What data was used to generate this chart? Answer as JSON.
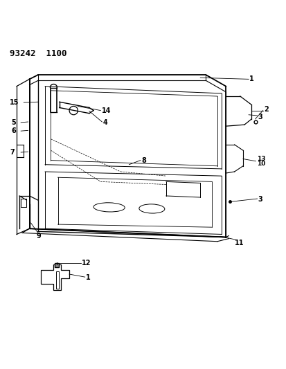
{
  "title": "93242  1100",
  "background_color": "#ffffff",
  "line_color": "#000000",
  "figsize": [
    4.14,
    5.33
  ],
  "dpi": 100
}
